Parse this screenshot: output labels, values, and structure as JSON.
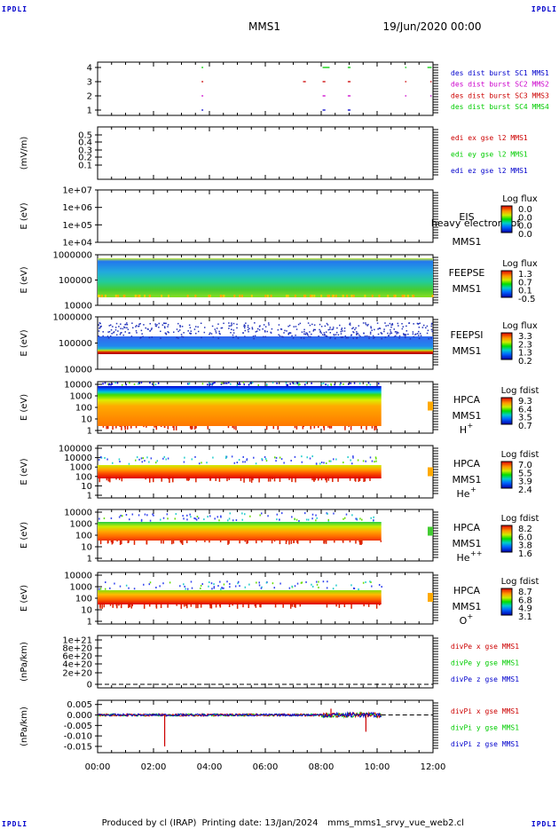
{
  "header": {
    "corner_label": "IPDLI",
    "spacecraft": "MMS1",
    "date_time": "19/Jun/2020 00:00"
  },
  "footer": {
    "produced_by": "Produced by cl (IRAP)",
    "printing_date": "Printing date: 13/Jan/2024",
    "file_name": "mms_mms1_srvy_vue_web2.cl"
  },
  "time_axis": {
    "tick_labels": [
      "00:00",
      "02:00",
      "04:00",
      "06:00",
      "08:00",
      "10:00",
      "12:00"
    ],
    "range_hours": [
      0,
      12
    ]
  },
  "colors": {
    "sc1": "#0000cc",
    "sc2": "#cc00cc",
    "sc3": "#cc0000",
    "sc4": "#00cc00",
    "x_comp": "#cc0000",
    "y_comp": "#00cc00",
    "z_comp": "#0000cc"
  },
  "chart_data": [
    {
      "type": "timeline",
      "id": "burst",
      "y_ticks": [
        "1",
        "2",
        "3",
        "4"
      ],
      "legend": [
        {
          "label": "des dist burst SC1 MMS1",
          "color": "#0000cc"
        },
        {
          "label": "des dist burst SC2 MMS2",
          "color": "#cc00cc"
        },
        {
          "label": "des dist burst SC3 MMS3",
          "color": "#cc0000"
        },
        {
          "label": "des dist burst SC4 MMS4",
          "color": "#00cc00"
        }
      ],
      "series": [
        {
          "level": 1,
          "color": "#0000cc",
          "intervals": [
            [
              3.72,
              3.78
            ],
            [
              8.05,
              8.15
            ],
            [
              8.95,
              9.05
            ]
          ]
        },
        {
          "level": 2,
          "color": "#cc00cc",
          "intervals": [
            [
              3.72,
              3.78
            ],
            [
              8.05,
              8.15
            ],
            [
              8.95,
              9.05
            ],
            [
              11.0,
              11.05
            ],
            [
              11.9,
              11.95
            ]
          ]
        },
        {
          "level": 3,
          "color": "#cc0000",
          "intervals": [
            [
              3.72,
              3.78
            ],
            [
              7.35,
              7.45
            ],
            [
              8.05,
              8.15
            ],
            [
              8.95,
              9.05
            ],
            [
              11.0,
              11.05
            ],
            [
              11.9,
              11.95
            ]
          ]
        },
        {
          "level": 4,
          "color": "#00cc00",
          "intervals": [
            [
              3.72,
              3.78
            ],
            [
              8.05,
              8.3
            ],
            [
              8.95,
              9.05
            ],
            [
              11.0,
              11.05
            ],
            [
              11.8,
              11.95
            ]
          ]
        }
      ]
    },
    {
      "type": "line",
      "id": "edi",
      "ylabel": "(mV/m)",
      "y_ticks": [
        "0.5",
        "0.4",
        "0.3",
        "0.2",
        "0.1"
      ],
      "legend": [
        {
          "label": "edi ex gse l2 MMS1",
          "color": "#cc0000"
        },
        {
          "label": "edi ey gse l2 MMS1",
          "color": "#00cc00"
        },
        {
          "label": "edi ez gse l2 MMS1",
          "color": "#0000cc"
        }
      ]
    },
    {
      "type": "heatmap",
      "id": "eis",
      "ylabel": "E (eV)",
      "y_ticks": [
        "1e+07",
        "1e+06",
        "1e+05",
        "1e+04"
      ],
      "instrument": "EIS",
      "overlay_text": "heavy electron tof",
      "spacecraft": "MMS1",
      "colorbar_title": "Log flux",
      "colorbar_ticks": [
        "0.0",
        "0.0",
        "0.0",
        "0.0"
      ]
    },
    {
      "type": "heatmap",
      "id": "feepse",
      "ylabel": "E (eV)",
      "y_ticks": [
        "1000000",
        "100000",
        "10000"
      ],
      "instrument": "FEEPSE",
      "spacecraft": "MMS1",
      "colorbar_title": "Log flux",
      "colorbar_ticks": [
        "1.3",
        "0.7",
        "0.1",
        "-0.5"
      ],
      "coverage_hours": [
        0,
        12
      ]
    },
    {
      "type": "heatmap",
      "id": "feepsi",
      "ylabel": "E (eV)",
      "y_ticks": [
        "1000000",
        "100000",
        "10000"
      ],
      "instrument": "FEEPSI",
      "spacecraft": "MMS1",
      "colorbar_title": "Log flux",
      "colorbar_ticks": [
        "3.3",
        "2.3",
        "1.3",
        "0.2"
      ],
      "coverage_hours": [
        0,
        12
      ]
    },
    {
      "type": "heatmap",
      "id": "hpca_h",
      "ylabel": "E (eV)",
      "y_ticks": [
        "10000",
        "1000",
        "100",
        "10",
        "1"
      ],
      "instrument": "HPCA",
      "spacecraft": "MMS1",
      "species": "H",
      "species_charge": "+",
      "colorbar_title": "Log fdist",
      "colorbar_ticks": [
        "9.3",
        "6.4",
        "3.5",
        "0.7"
      ],
      "coverage_hours": [
        0,
        10.15
      ]
    },
    {
      "type": "heatmap",
      "id": "hpca_he",
      "ylabel": "E (eV)",
      "y_ticks": [
        "100000",
        "10000",
        "1000",
        "100",
        "10",
        "1"
      ],
      "instrument": "HPCA",
      "spacecraft": "MMS1",
      "species": "He",
      "species_charge": "+",
      "colorbar_title": "Log fdist",
      "colorbar_ticks": [
        "7.0",
        "5.5",
        "3.9",
        "2.4"
      ],
      "coverage_hours": [
        0,
        10.15
      ]
    },
    {
      "type": "heatmap",
      "id": "hpca_hepp",
      "ylabel": "E (eV)",
      "y_ticks": [
        "10000",
        "1000",
        "100",
        "10",
        "1"
      ],
      "instrument": "HPCA",
      "spacecraft": "MMS1",
      "species": "He",
      "species_charge": "++",
      "colorbar_title": "Log fdist",
      "colorbar_ticks": [
        "8.2",
        "6.0",
        "3.8",
        "1.6"
      ],
      "coverage_hours": [
        0,
        10.15
      ]
    },
    {
      "type": "heatmap",
      "id": "hpca_o",
      "ylabel": "E (eV)",
      "y_ticks": [
        "10000",
        "1000",
        "100",
        "10",
        "1"
      ],
      "instrument": "HPCA",
      "spacecraft": "MMS1",
      "species": "O",
      "species_charge": "+",
      "colorbar_title": "Log fdist",
      "colorbar_ticks": [
        "8.7",
        "6.8",
        "4.9",
        "3.1"
      ],
      "coverage_hours": [
        0,
        10.15
      ]
    },
    {
      "type": "line",
      "id": "divpe",
      "ylabel": "(nPa/km)",
      "y_ticks": [
        "1e+21",
        "8e+20",
        "6e+20",
        "4e+20",
        "2e+20",
        "0"
      ],
      "legend": [
        {
          "label": "divPe x gse MMS1",
          "color": "#cc0000"
        },
        {
          "label": "divPe y gse MMS1",
          "color": "#00cc00"
        },
        {
          "label": "divPe z gse MMS1",
          "color": "#0000cc"
        }
      ]
    },
    {
      "type": "line",
      "id": "divpi",
      "ylabel": "(nPa/km)",
      "y_ticks": [
        "0.005",
        "0.000",
        "-0.005",
        "-0.010",
        "-0.015"
      ],
      "ylim": [
        -0.018,
        0.007
      ],
      "legend": [
        {
          "label": "divPi x gse MMS1",
          "color": "#cc0000"
        },
        {
          "label": "divPi y gse MMS1",
          "color": "#00cc00"
        },
        {
          "label": "divPi z gse MMS1",
          "color": "#0000cc"
        }
      ],
      "coverage_hours": [
        0,
        10.15
      ],
      "spikes": [
        {
          "t": 2.4,
          "value": -0.015
        },
        {
          "t": 9.6,
          "value": -0.008
        },
        {
          "t": 8.35,
          "value": 0.003
        }
      ]
    }
  ]
}
